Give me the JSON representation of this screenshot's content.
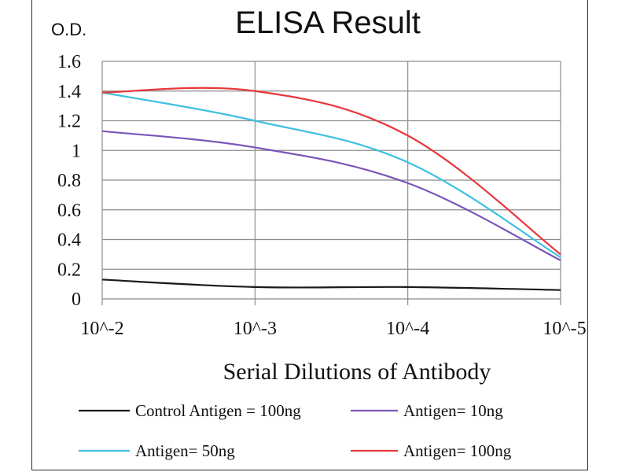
{
  "chart_data": {
    "type": "line",
    "title": "ELISA Result",
    "ylabel": "O.D.",
    "xlabel": "Serial Dilutions  of Antibody",
    "categories": [
      "10^-2",
      "10^-3",
      "10^-4",
      "10^-5"
    ],
    "yticks": [
      "0",
      "0.2",
      "0.4",
      "0.6",
      "0.8",
      "1",
      "1.2",
      "1.4",
      "1.6"
    ],
    "ylim": [
      0,
      1.6
    ],
    "grid": true,
    "legend_position": "bottom",
    "series": [
      {
        "name": "Control Antigen = 100ng",
        "color": "#1a1a1a",
        "values": [
          0.13,
          0.08,
          0.08,
          0.06
        ]
      },
      {
        "name": "Antigen= 10ng",
        "color": "#7b55b8",
        "values": [
          1.13,
          1.02,
          0.78,
          0.26
        ]
      },
      {
        "name": "Antigen= 50ng",
        "color": "#3cc0e0",
        "values": [
          1.39,
          1.2,
          0.92,
          0.28
        ]
      },
      {
        "name": "Antigen= 100ng",
        "color": "#e8363a",
        "values": [
          1.39,
          1.4,
          1.1,
          0.3
        ]
      }
    ]
  }
}
